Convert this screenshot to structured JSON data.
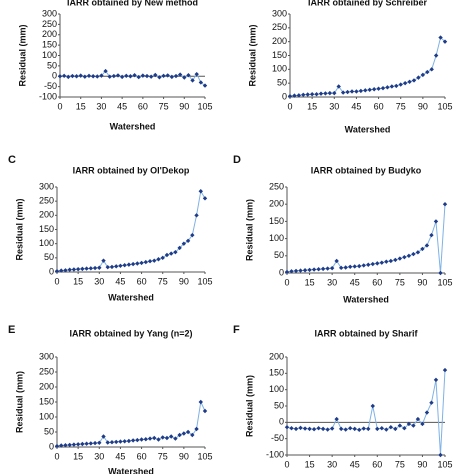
{
  "chart_data": [
    {
      "type": "line",
      "title": "IARR obtained by New method",
      "xlabel": "Watershed",
      "ylabel": "Residual (mm)",
      "x": [
        0,
        3,
        6,
        9,
        12,
        15,
        18,
        21,
        24,
        27,
        30,
        33,
        36,
        39,
        42,
        45,
        48,
        51,
        54,
        57,
        60,
        63,
        66,
        69,
        72,
        75,
        78,
        81,
        84,
        87,
        90,
        93,
        96,
        99,
        102,
        105
      ],
      "values": [
        0,
        2,
        -3,
        1,
        0,
        3,
        -2,
        2,
        0,
        -1,
        3,
        25,
        -2,
        1,
        4,
        -3,
        2,
        0,
        5,
        -4,
        3,
        1,
        -2,
        6,
        -5,
        2,
        4,
        -3,
        1,
        8,
        -6,
        5,
        -20,
        10,
        -30,
        -45
      ],
      "xlim": [
        0,
        105
      ],
      "xticks": [
        0,
        15,
        30,
        45,
        60,
        75,
        90,
        105
      ],
      "ylim": [
        -100,
        300
      ],
      "yticks": [
        -100,
        -50,
        0,
        50,
        100,
        150,
        200,
        250,
        300
      ],
      "line_color": "#7fb2e5",
      "marker_color": "#1f3c88"
    },
    {
      "type": "line",
      "title": "IARR obtained by Schreiber",
      "xlabel": "Watershed",
      "ylabel": "Residual (mm)",
      "x": [
        0,
        3,
        6,
        9,
        12,
        15,
        18,
        21,
        24,
        27,
        30,
        33,
        36,
        39,
        42,
        45,
        48,
        51,
        54,
        57,
        60,
        63,
        66,
        69,
        72,
        75,
        78,
        81,
        84,
        87,
        90,
        93,
        96,
        99,
        102,
        105
      ],
      "values": [
        3,
        5,
        6,
        8,
        9,
        10,
        10,
        12,
        13,
        14,
        14,
        38,
        16,
        18,
        20,
        20,
        22,
        24,
        26,
        28,
        30,
        32,
        35,
        38,
        40,
        45,
        50,
        55,
        60,
        70,
        80,
        90,
        100,
        150,
        215,
        200
      ],
      "xlim": [
        0,
        105
      ],
      "xticks": [
        0,
        15,
        30,
        45,
        60,
        75,
        90,
        105
      ],
      "ylim": [
        0,
        300
      ],
      "yticks": [
        0,
        50,
        100,
        150,
        200,
        250,
        300
      ],
      "line_color": "#7fb2e5",
      "marker_color": "#1f3c88"
    },
    {
      "type": "line",
      "panel_label": "C",
      "title": "IARR obtained by Ol'Dekop",
      "xlabel": "Watershed",
      "ylabel": "Residual (mm)",
      "x": [
        0,
        3,
        6,
        9,
        12,
        15,
        18,
        21,
        24,
        27,
        30,
        33,
        36,
        39,
        42,
        45,
        48,
        51,
        54,
        57,
        60,
        63,
        66,
        69,
        72,
        75,
        78,
        81,
        84,
        87,
        90,
        93,
        96,
        99,
        102,
        105
      ],
      "values": [
        3,
        5,
        6,
        8,
        9,
        10,
        11,
        12,
        13,
        14,
        15,
        40,
        17,
        18,
        20,
        22,
        24,
        26,
        28,
        30,
        32,
        35,
        38,
        40,
        45,
        50,
        60,
        65,
        70,
        85,
        100,
        110,
        130,
        200,
        285,
        260
      ],
      "xlim": [
        0,
        105
      ],
      "xticks": [
        0,
        15,
        30,
        45,
        60,
        75,
        90,
        105
      ],
      "ylim": [
        0,
        300
      ],
      "yticks": [
        0,
        50,
        100,
        150,
        200,
        250,
        300
      ],
      "line_color": "#7fb2e5",
      "marker_color": "#1f3c88"
    },
    {
      "type": "line",
      "panel_label": "D",
      "title": "IARR obtained by Budyko",
      "xlabel": "Watershed",
      "ylabel": "Residual (mm)",
      "x": [
        0,
        3,
        6,
        9,
        12,
        15,
        18,
        21,
        24,
        27,
        30,
        33,
        36,
        39,
        42,
        45,
        48,
        51,
        54,
        57,
        60,
        63,
        66,
        69,
        72,
        75,
        78,
        81,
        84,
        87,
        90,
        93,
        96,
        99,
        102,
        105
      ],
      "values": [
        3,
        5,
        6,
        7,
        8,
        9,
        10,
        11,
        12,
        13,
        14,
        35,
        15,
        16,
        18,
        19,
        20,
        22,
        24,
        26,
        28,
        30,
        33,
        35,
        38,
        42,
        46,
        50,
        55,
        60,
        70,
        80,
        110,
        150,
        0,
        200
      ],
      "xlim": [
        0,
        105
      ],
      "xticks": [
        0,
        15,
        30,
        45,
        60,
        75,
        90,
        105
      ],
      "ylim": [
        0,
        250
      ],
      "yticks": [
        0,
        50,
        100,
        150,
        200,
        250
      ],
      "line_color": "#7fb2e5",
      "marker_color": "#1f3c88"
    },
    {
      "type": "line",
      "panel_label": "E",
      "title": "IARR obtained by Yang (n=2)",
      "xlabel": "Watershed",
      "ylabel": "Residual (mm)",
      "x": [
        0,
        3,
        6,
        9,
        12,
        15,
        18,
        21,
        24,
        27,
        30,
        33,
        36,
        39,
        42,
        45,
        48,
        51,
        54,
        57,
        60,
        63,
        66,
        69,
        72,
        75,
        78,
        81,
        84,
        87,
        90,
        93,
        96,
        99,
        102,
        105
      ],
      "values": [
        3,
        5,
        6,
        7,
        8,
        9,
        10,
        11,
        12,
        13,
        14,
        35,
        15,
        16,
        17,
        18,
        19,
        20,
        22,
        23,
        25,
        26,
        28,
        30,
        25,
        32,
        30,
        35,
        28,
        40,
        45,
        50,
        40,
        60,
        150,
        120
      ],
      "xlim": [
        0,
        105
      ],
      "xticks": [
        0,
        15,
        30,
        45,
        60,
        75,
        90,
        105
      ],
      "ylim": [
        0,
        300
      ],
      "yticks": [
        0,
        50,
        100,
        150,
        200,
        250,
        300
      ],
      "line_color": "#7fb2e5",
      "marker_color": "#1f3c88"
    },
    {
      "type": "line",
      "panel_label": "F",
      "title": "IARR obtained by Sharif",
      "xlabel": "Watershed",
      "ylabel": "Residual (mm)",
      "x": [
        0,
        3,
        6,
        9,
        12,
        15,
        18,
        21,
        24,
        27,
        30,
        33,
        36,
        39,
        42,
        45,
        48,
        51,
        54,
        57,
        60,
        63,
        66,
        69,
        72,
        75,
        78,
        81,
        84,
        87,
        90,
        93,
        96,
        99,
        102,
        105
      ],
      "values": [
        -15,
        -18,
        -20,
        -17,
        -19,
        -20,
        -21,
        -18,
        -20,
        -22,
        -19,
        10,
        -20,
        -22,
        -18,
        -20,
        -23,
        -19,
        -20,
        50,
        -20,
        -18,
        -22,
        -15,
        -20,
        -10,
        -18,
        -5,
        -10,
        10,
        -5,
        30,
        60,
        130,
        -100,
        160
      ],
      "xlim": [
        0,
        105
      ],
      "xticks": [
        0,
        15,
        30,
        45,
        60,
        75,
        90,
        105
      ],
      "ylim": [
        -100,
        200
      ],
      "yticks": [
        -100,
        -50,
        0,
        50,
        100,
        150,
        200
      ],
      "line_color": "#7fb2e5",
      "marker_color": "#1f3c88"
    }
  ]
}
